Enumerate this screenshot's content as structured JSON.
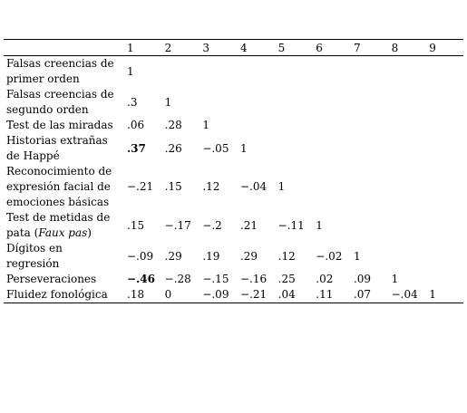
{
  "table": {
    "header": [
      "1",
      "2",
      "3",
      "4",
      "5",
      "6",
      "7",
      "8",
      "9"
    ],
    "rows": [
      {
        "label": "Falsas creencias de primer orden",
        "cells": [
          "1"
        ]
      },
      {
        "label": "Falsas creencias de segundo orden",
        "cells": [
          ".3",
          "1"
        ]
      },
      {
        "label": "Test de las miradas",
        "cells": [
          ".06",
          ".28",
          "1"
        ]
      },
      {
        "label": "Historias extrañas de Happé",
        "cells": [
          {
            "text": ".37",
            "bold": true
          },
          ".26",
          "−.05",
          "1"
        ]
      },
      {
        "label": "Reconocimiento de expresión facial de emociones básicas",
        "cells": [
          "−.21",
          ".15",
          ".12",
          "−.04",
          "1"
        ]
      },
      {
        "label": "Test de metidas de pata (",
        "label_italic": "Faux pas",
        "label_end": ")",
        "cells": [
          ".15",
          "−.17",
          "−.2",
          ".21",
          "−.11",
          "1"
        ]
      },
      {
        "label": "Dígitos en regresión",
        "cells": [
          "−.09",
          ".29",
          ".19",
          ".29",
          ".12",
          "−.02",
          "1"
        ]
      },
      {
        "label": "Perseveraciones",
        "cells": [
          {
            "text": "−.46",
            "bold": true
          },
          "−.28",
          "−.15",
          "−.16",
          ".25",
          ".02",
          ".09",
          "1"
        ]
      },
      {
        "label": "Fluidez fonológica",
        "cells": [
          ".18",
          "0",
          "−.09",
          "−.21",
          ".04",
          ".11",
          ".07",
          "−.04",
          "1"
        ]
      }
    ]
  }
}
